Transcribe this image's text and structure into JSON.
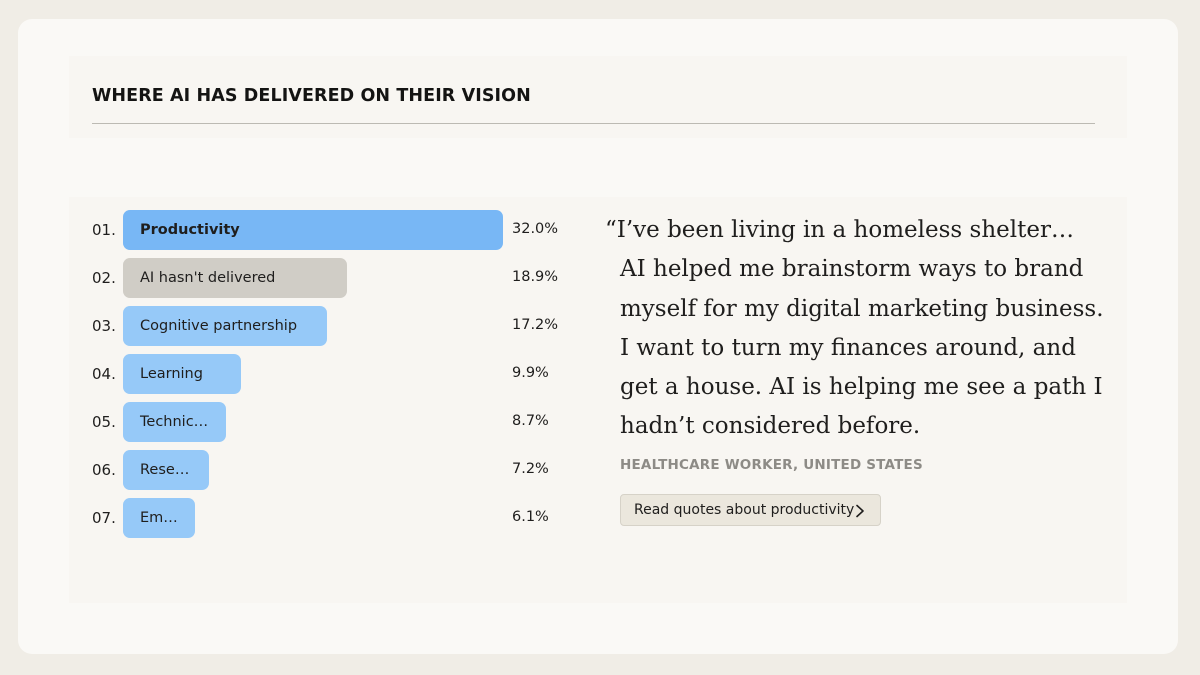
{
  "title": "WHERE AI HAS DELIVERED ON THEIR VISION",
  "chart_data": {
    "type": "bar",
    "orientation": "horizontal",
    "xlim": [
      0,
      32
    ],
    "categories": [
      {
        "rank": "01.",
        "label": "Productivity",
        "value": 32.0,
        "value_label": "32.0%",
        "color": "#78b7f5",
        "bold": true
      },
      {
        "rank": "02.",
        "label": "AI hasn't delivered",
        "value": 18.9,
        "value_label": "18.9%",
        "color": "#d0cdc6",
        "bold": false
      },
      {
        "rank": "03.",
        "label": "Cognitive partnership",
        "value": 17.2,
        "value_label": "17.2%",
        "color": "#96c9f8",
        "bold": false
      },
      {
        "rank": "04.",
        "label": "Learning",
        "value": 9.9,
        "value_label": "9.9%",
        "color": "#96c9f8",
        "bold": false
      },
      {
        "rank": "05.",
        "label": "Technic…",
        "value": 8.7,
        "value_label": "8.7%",
        "color": "#96c9f8",
        "bold": false
      },
      {
        "rank": "06.",
        "label": "Rese…",
        "value": 7.2,
        "value_label": "7.2%",
        "color": "#96c9f8",
        "bold": false
      },
      {
        "rank": "07.",
        "label": "Em…",
        "value": 6.1,
        "value_label": "6.1%",
        "color": "#96c9f8",
        "bold": false
      }
    ],
    "grid": false,
    "legend": "none"
  },
  "quote": {
    "text": "“I’ve been living in a homeless shelter… AI helped me brainstorm ways to brand myself for my digital marketing business. I want to turn my finances around, and get a house. AI is helping me see a path I hadn’t considered before.",
    "attribution": "HEALTHCARE WORKER, UNITED STATES",
    "button_label": "Read quotes about productivity",
    "button_icon": "chevron-right-icon"
  }
}
